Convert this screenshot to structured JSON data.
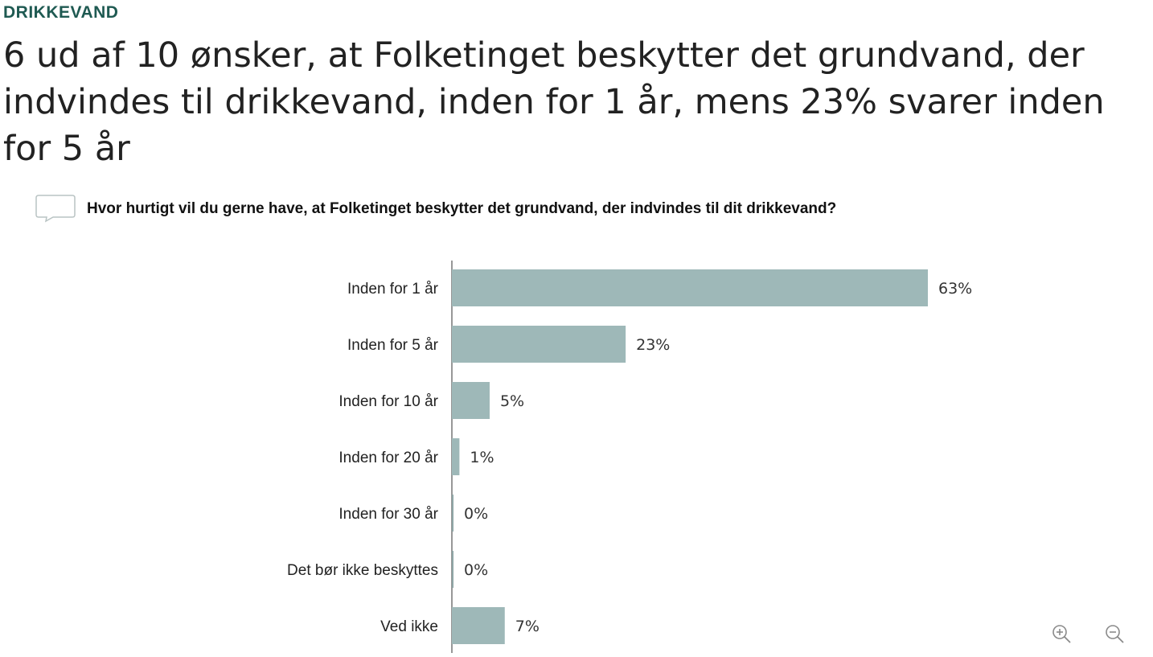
{
  "header": {
    "section_label": "DRIKKEVAND",
    "headline": "6 ud af 10 ønsker, at Folketinget beskytter det grundvand, der indvindes til drikkevand, inden for 1 år, mens 23% svarer inden for 5 år"
  },
  "question": {
    "icon": "comment-icon",
    "text": "Hvor hurtigt vil du gerne have, at Folketinget beskytter det grundvand, der indvindes til dit drikkevand?"
  },
  "chart_data": {
    "type": "bar",
    "orientation": "horizontal",
    "categories": [
      "Inden for 1 år",
      "Inden for 5 år",
      "Inden for 10 år",
      "Inden for 20 år",
      "Inden for 30 år",
      "Det bør ikke beskyttes",
      "Ved ikke"
    ],
    "values": [
      63,
      23,
      5,
      1,
      0,
      0,
      7
    ],
    "value_labels": [
      "63%",
      "23%",
      "5%",
      "1%",
      "0%",
      "0%",
      "7%"
    ],
    "unit": "%",
    "xlim": [
      0,
      63
    ],
    "grid": false,
    "bar_color": "#9eb8b8"
  },
  "controls": {
    "zoom_in_icon": "zoom-in-icon",
    "zoom_out_icon": "zoom-out-icon"
  }
}
